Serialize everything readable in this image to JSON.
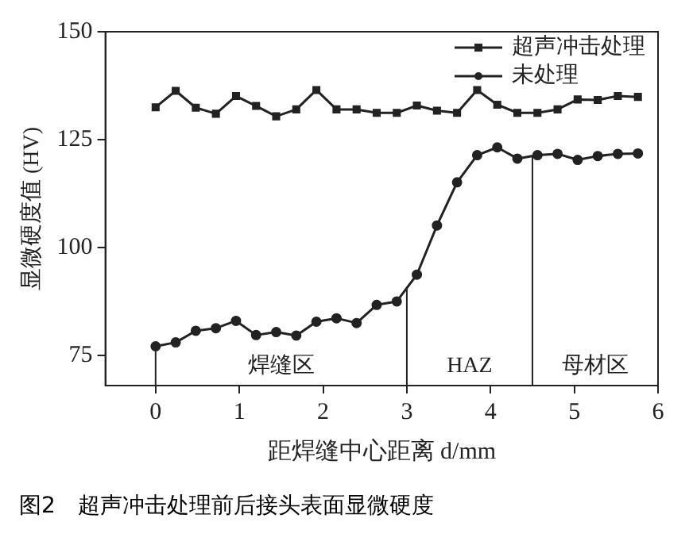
{
  "chart_data": {
    "type": "line",
    "title": "图2　超声冲击处理前后接头表面显微硬度",
    "xlabel": "距焊缝中心距离 d/mm",
    "ylabel": "显微硬度值 (HV)",
    "xlim": [
      -0.6,
      6
    ],
    "xticks": [
      0,
      1,
      2,
      3,
      4,
      5,
      6
    ],
    "ylim": [
      68,
      150
    ],
    "yticks": [
      75,
      100,
      125,
      150
    ],
    "grid": false,
    "legend": "top right",
    "line_style": "solid",
    "x": [
      0,
      0.24,
      0.48,
      0.72,
      0.96,
      1.2,
      1.44,
      1.68,
      1.92,
      2.16,
      2.4,
      2.64,
      2.88,
      3.12,
      3.36,
      3.6,
      3.84,
      4.08,
      4.32,
      4.56,
      4.8,
      5.04,
      5.28,
      5.52,
      5.76
    ],
    "series": [
      {
        "name": "超声冲击处理",
        "color": "#222222",
        "marker": "square",
        "values": [
          132.5,
          136.3,
          132.4,
          131,
          135.1,
          132.8,
          130.4,
          132,
          136.5,
          132,
          132,
          131.2,
          131.2,
          132.9,
          131.7,
          131.2,
          136.5,
          133.1,
          131.2,
          131.2,
          132,
          134.3,
          134.2,
          135.1,
          134.9
        ]
      },
      {
        "name": "未处理",
        "color": "#222222",
        "marker": "circle",
        "values": [
          77.1,
          78,
          80.7,
          81.3,
          83,
          79.7,
          80.4,
          79.6,
          82.8,
          83.6,
          82.5,
          86.7,
          87.5,
          93.7,
          105.1,
          115.1,
          121.4,
          123.2,
          120.6,
          121.4,
          121.7,
          120.3,
          121.2,
          121.7,
          121.8
        ]
      }
    ],
    "ref_lines": [
      {
        "axis": "x",
        "value": 0,
        "label": null
      },
      {
        "axis": "x",
        "value": 3,
        "label": null
      },
      {
        "axis": "x",
        "value": 4.5,
        "label": null
      }
    ],
    "annotations": [
      "焊缝区",
      "HAZ",
      "母材区"
    ]
  }
}
